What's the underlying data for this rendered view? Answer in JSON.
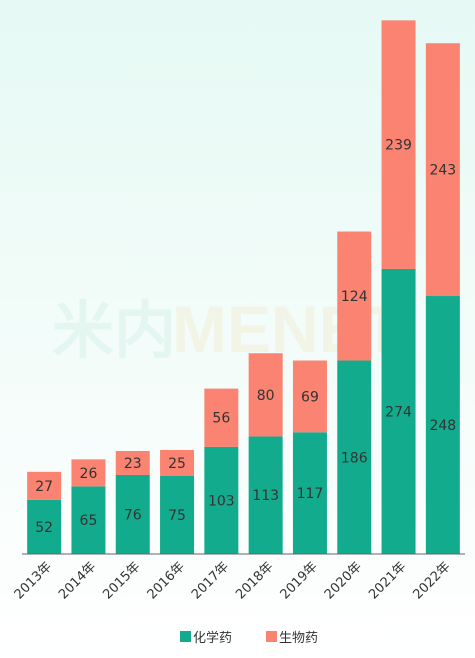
{
  "watermark": {
    "cn": "米内",
    "en": "MENET"
  },
  "chart_data": {
    "type": "bar",
    "stacked": true,
    "categories": [
      "2013年",
      "2014年",
      "2015年",
      "2016年",
      "2017年",
      "2018年",
      "2019年",
      "2020年",
      "2021年",
      "2022年"
    ],
    "series": [
      {
        "name": "化学药",
        "color": "#13ab8e",
        "values": [
          52,
          65,
          76,
          75,
          103,
          113,
          117,
          186,
          274,
          248
        ]
      },
      {
        "name": "生物药",
        "color": "#fa8371",
        "values": [
          27,
          26,
          23,
          25,
          56,
          80,
          69,
          124,
          239,
          243
        ]
      }
    ],
    "ylim": [
      0,
      522
    ],
    "grid": false,
    "legend_position": "bottom-center"
  }
}
